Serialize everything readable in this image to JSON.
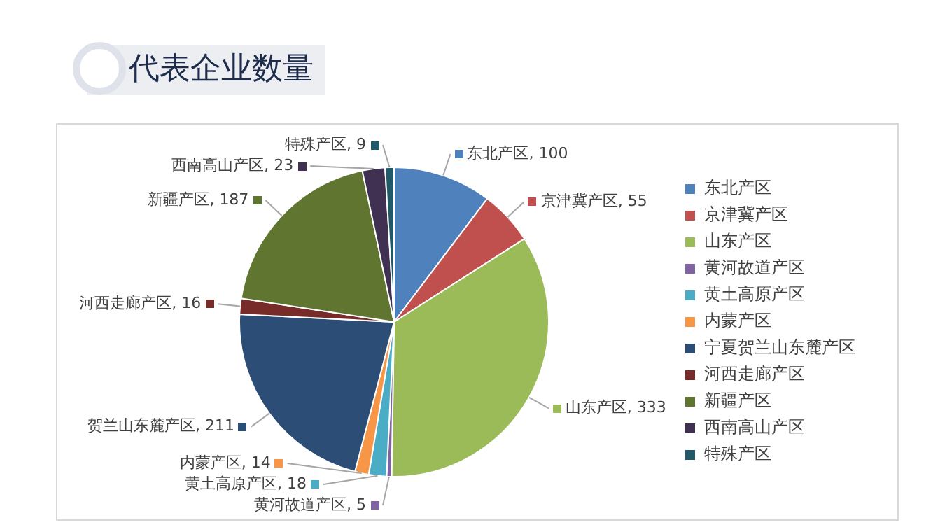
{
  "chart_data": {
    "type": "pie",
    "title": "代表企业数量",
    "categories": [
      "东北产区",
      "京津冀产区",
      "山东产区",
      "黄河故道产区",
      "黄土高原产区",
      "内蒙产区",
      "宁夏贺兰山东麓产区",
      "河西走廊产区",
      "新疆产区",
      "西南高山产区",
      "特殊产区"
    ],
    "values": [
      100,
      55,
      333,
      5,
      18,
      14,
      211,
      16,
      187,
      23,
      9
    ],
    "colors": [
      "#4f81bd",
      "#c0504d",
      "#9bbb59",
      "#8064a2",
      "#4bacc6",
      "#f79646",
      "#2c4d75",
      "#772c2a",
      "#5f7530",
      "#403152",
      "#215968"
    ],
    "value_labels": [
      "东北产区, 100",
      "京津冀产区, 55",
      "山东产区, 333",
      "黄河故道产区, 5",
      "黄土高原产区, 18",
      "内蒙产区, 14",
      "贺兰山东麓产区, 211",
      "河西走廊产区, 16",
      "新疆产区, 187",
      "西南高山产区, 23",
      "特殊产区, 9"
    ],
    "legend": "right"
  }
}
